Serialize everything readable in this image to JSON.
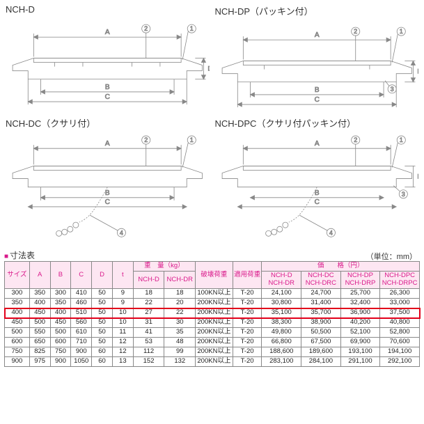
{
  "diagrams": [
    {
      "title": "NCH-D",
      "type": "plain"
    },
    {
      "title": "NCH-DP（パッキン付）",
      "type": "packing"
    },
    {
      "title": "NCH-DC（クサリ付）",
      "type": "chain"
    },
    {
      "title": "NCH-DPC（クサリ付パッキン付）",
      "type": "chain-packing"
    }
  ],
  "section_label": "寸法表",
  "unit_label": "（単位：mm）",
  "table": {
    "header_groups": {
      "weight": "重　量（kg）",
      "price": "価　　格（円）"
    },
    "columns": [
      "サイズ",
      "A",
      "B",
      "C",
      "D",
      "t",
      "NCH-D",
      "NCH-DR",
      "破壊荷重",
      "適用荷重",
      "NCH-D\nNCH-DR",
      "NCH-DC\nNCH-DRC",
      "NCH-DP\nNCH-DRP",
      "NCH-DPC\nNCH-DRPC"
    ],
    "rows": [
      [
        "300",
        "350",
        "300",
        "410",
        "50",
        "9",
        "18",
        "18",
        "100KN以上",
        "T-20",
        "24,100",
        "24,700",
        "25,700",
        "26,300"
      ],
      [
        "350",
        "400",
        "350",
        "460",
        "50",
        "9",
        "22",
        "20",
        "200KN以上",
        "T-20",
        "30,800",
        "31,400",
        "32,400",
        "33,000"
      ],
      [
        "400",
        "450",
        "400",
        "510",
        "50",
        "10",
        "27",
        "22",
        "200KN以上",
        "T-20",
        "35,100",
        "35,700",
        "36,900",
        "37,500"
      ],
      [
        "450",
        "500",
        "450",
        "560",
        "50",
        "10",
        "31",
        "30",
        "200KN以上",
        "T-20",
        "38,300",
        "38,900",
        "40,200",
        "40,800"
      ],
      [
        "500",
        "550",
        "500",
        "610",
        "50",
        "11",
        "41",
        "35",
        "200KN以上",
        "T-20",
        "49,800",
        "50,500",
        "52,100",
        "52,800"
      ],
      [
        "600",
        "650",
        "600",
        "710",
        "50",
        "12",
        "53",
        "48",
        "200KN以上",
        "T-20",
        "66,800",
        "67,500",
        "69,900",
        "70,600"
      ],
      [
        "750",
        "825",
        "750",
        "900",
        "60",
        "12",
        "112",
        "99",
        "200KN以上",
        "T-20",
        "188,600",
        "189,600",
        "193,100",
        "194,100"
      ],
      [
        "900",
        "975",
        "900",
        "1050",
        "60",
        "13",
        "152",
        "132",
        "200KN以上",
        "T-20",
        "283,100",
        "284,100",
        "291,100",
        "292,100"
      ]
    ],
    "highlight_row_index": 2
  },
  "colors": {
    "accent": "#d91a8b",
    "highlight": "#e2001a",
    "header_bg": "#fde6f2",
    "line": "#888888"
  }
}
